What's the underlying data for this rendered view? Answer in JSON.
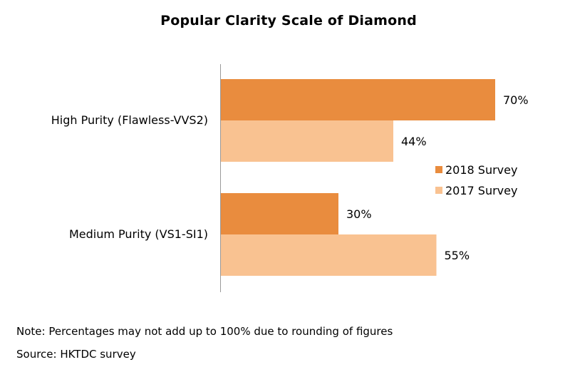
{
  "chart_data": {
    "type": "bar",
    "orientation": "horizontal",
    "title": "Popular Clarity Scale of Diamond",
    "categories": [
      "High Purity (Flawless-VVS2)",
      "Medium Purity (VS1-SI1)"
    ],
    "series": [
      {
        "name": "2018 Survey",
        "values": [
          70,
          30
        ],
        "labels": [
          "70%",
          "30%"
        ],
        "color": "#E98C3E"
      },
      {
        "name": "2017 Survey",
        "values": [
          44,
          55
        ],
        "labels": [
          "44%",
          "55%"
        ],
        "color": "#F9C291"
      }
    ],
    "xlim": [
      0,
      100
    ],
    "grid": false,
    "legend": "right"
  },
  "footnotes": {
    "note": "Note: Percentages may not add up to 100% due to rounding of figures",
    "source": "Source: HKTDC survey"
  }
}
